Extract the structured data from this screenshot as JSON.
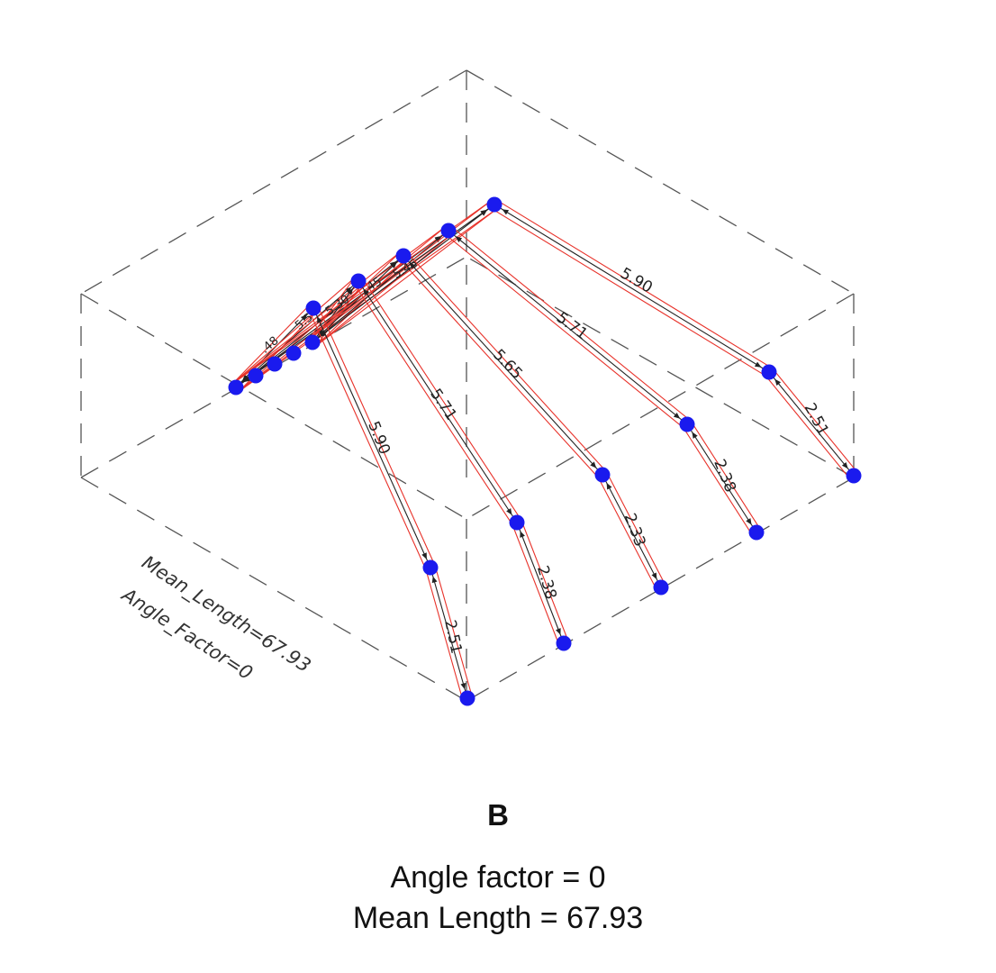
{
  "panel_letter": "B",
  "caption": {
    "line1": "Angle factor = 0",
    "line2": "Mean Length = 67.93"
  },
  "overlay": {
    "mean_length_text": "Mean_Length=67.93",
    "angle_factor_text": "Angle_Factor=0"
  },
  "segment_labels": {
    "f1_proximal": "5.90",
    "f1_distal": "2.51",
    "f2_proximal": "5.71",
    "f2_distal": "2.38",
    "f3_proximal": "5.65",
    "f3_distal": "2.33",
    "f4_proximal": "5.71",
    "f4_distal": "2.38",
    "f5_proximal": "5.90",
    "f5_distal": "2.51",
    "inner_a": "5.46",
    "inner_b": ".45",
    "inner_c": "5.30",
    "inner_d": "5.5",
    "inner_e": ".48"
  },
  "colors": {
    "joint": "#1a1aee",
    "bone_outline": "#e8322a",
    "bone_line": "#222222",
    "box_edge": "#555555"
  }
}
